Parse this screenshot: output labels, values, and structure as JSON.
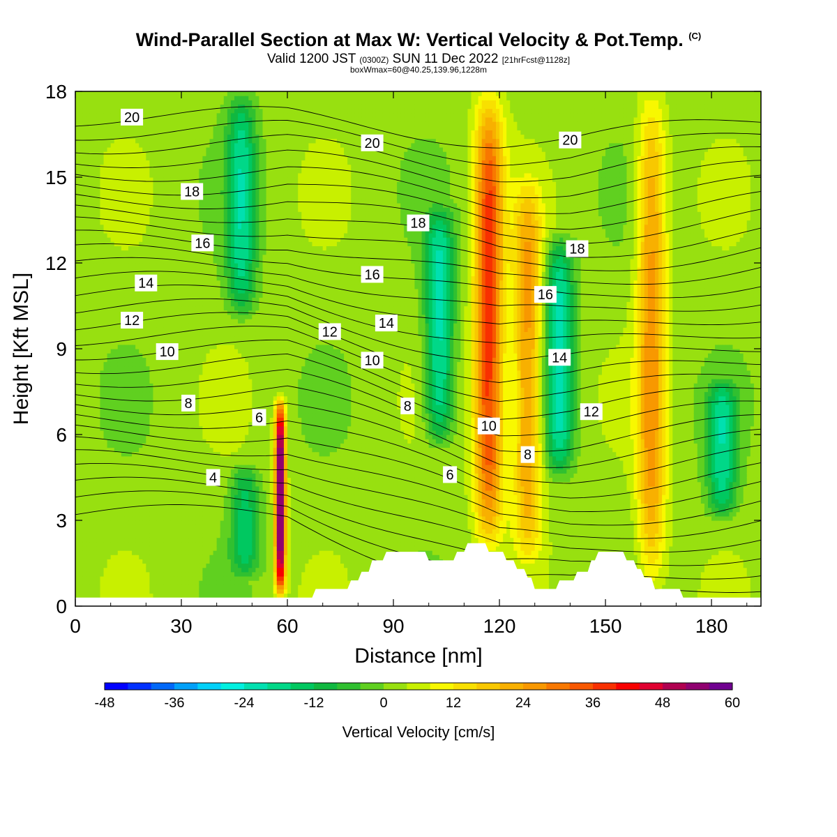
{
  "titles": {
    "main": "Wind-Parallel Section at Max W: Vertical Velocity & Pot.Temp.",
    "copyright": "(C)",
    "valid_a": "Valid 1200 JST",
    "valid_b": "(0300Z)",
    "valid_c": "SUN 11 Dec 2022",
    "valid_d": "[21hrFcst@1128z]",
    "box": "boxWmax=60@40.25,139.96,1228m"
  },
  "chart_data": {
    "type": "heatmap",
    "xlabel": "Distance [nm]",
    "ylabel": "Height [Kft MSL]",
    "xlim": [
      0,
      194
    ],
    "ylim": [
      0,
      18
    ],
    "xticks": [
      0,
      30,
      60,
      90,
      120,
      150,
      180
    ],
    "yticks": [
      0,
      3,
      6,
      9,
      12,
      15,
      18
    ],
    "colorbar": {
      "label": "Vertical Velocity [cm/s]",
      "ticks": [
        -48,
        -36,
        -24,
        -12,
        0,
        12,
        24,
        36,
        48,
        60
      ],
      "levels": [
        -48,
        -44,
        -40,
        -36,
        -32,
        -28,
        -24,
        -20,
        -16,
        -12,
        -8,
        -4,
        0,
        4,
        8,
        12,
        16,
        20,
        24,
        28,
        32,
        36,
        40,
        44,
        48,
        52,
        56,
        60
      ],
      "colors": [
        "#0000ff",
        "#0030ff",
        "#0068f8",
        "#00a0f8",
        "#00d0f8",
        "#00f0e0",
        "#00e0b0",
        "#00d888",
        "#00c860",
        "#10b840",
        "#30c030",
        "#60d020",
        "#98e010",
        "#c8f000",
        "#f8f800",
        "#f8e000",
        "#f8c800",
        "#f8b000",
        "#f89800",
        "#f87800",
        "#f85800",
        "#f83000",
        "#f80000",
        "#e00030",
        "#b00050",
        "#900070",
        "#700090"
      ]
    },
    "features": [
      {
        "kind": "updraft",
        "center_x": 58,
        "bottom": 0.3,
        "top": 7.3,
        "peak_w": 60
      },
      {
        "kind": "updraft",
        "center_x": 117,
        "bottom": 2.0,
        "top": 18,
        "peak_w": 36
      },
      {
        "kind": "updraft",
        "center_x": 128,
        "bottom": 1.5,
        "top": 15,
        "peak_w": 24
      },
      {
        "kind": "updraft",
        "center_x": 163,
        "bottom": 0.5,
        "top": 18,
        "peak_w": 24
      },
      {
        "kind": "downdraft",
        "center_x": 103,
        "bottom": 5.5,
        "top": 14,
        "peak_w": -24
      },
      {
        "kind": "downdraft",
        "center_x": 137,
        "bottom": 4.5,
        "top": 13,
        "peak_w": -24
      },
      {
        "kind": "downdraft",
        "center_x": 48,
        "bottom": 1.0,
        "top": 5.0,
        "peak_w": -16
      },
      {
        "kind": "downdraft",
        "center_x": 183,
        "bottom": 3.0,
        "top": 8.0,
        "peak_w": -20
      },
      {
        "kind": "downdraft",
        "center_x": 47,
        "bottom": 10,
        "top": 18,
        "peak_w": -20
      }
    ],
    "terrain": [
      {
        "x": 0,
        "h": 0.3
      },
      {
        "x": 67,
        "h": 0.3
      },
      {
        "x": 68,
        "h": 0.6
      },
      {
        "x": 77,
        "h": 0.6
      },
      {
        "x": 78,
        "h": 0.9
      },
      {
        "x": 80,
        "h": 0.9
      },
      {
        "x": 81,
        "h": 1.2
      },
      {
        "x": 83,
        "h": 1.2
      },
      {
        "x": 84,
        "h": 1.6
      },
      {
        "x": 87,
        "h": 1.6
      },
      {
        "x": 88,
        "h": 1.9
      },
      {
        "x": 99,
        "h": 1.9
      },
      {
        "x": 100,
        "h": 1.6
      },
      {
        "x": 107,
        "h": 1.6
      },
      {
        "x": 108,
        "h": 1.9
      },
      {
        "x": 110,
        "h": 1.9
      },
      {
        "x": 111,
        "h": 2.2
      },
      {
        "x": 116,
        "h": 2.2
      },
      {
        "x": 117,
        "h": 1.9
      },
      {
        "x": 121,
        "h": 1.9
      },
      {
        "x": 122,
        "h": 1.6
      },
      {
        "x": 124,
        "h": 1.6
      },
      {
        "x": 125,
        "h": 1.3
      },
      {
        "x": 127,
        "h": 1.3
      },
      {
        "x": 128,
        "h": 1.0
      },
      {
        "x": 129,
        "h": 1.0
      },
      {
        "x": 130,
        "h": 0.6
      },
      {
        "x": 136,
        "h": 0.6
      },
      {
        "x": 137,
        "h": 0.9
      },
      {
        "x": 141,
        "h": 0.9
      },
      {
        "x": 142,
        "h": 1.2
      },
      {
        "x": 145,
        "h": 1.2
      },
      {
        "x": 146,
        "h": 1.6
      },
      {
        "x": 147,
        "h": 1.6
      },
      {
        "x": 148,
        "h": 1.9
      },
      {
        "x": 155,
        "h": 1.9
      },
      {
        "x": 156,
        "h": 1.6
      },
      {
        "x": 158,
        "h": 1.6
      },
      {
        "x": 159,
        "h": 1.3
      },
      {
        "x": 160,
        "h": 1.3
      },
      {
        "x": 161,
        "h": 1.0
      },
      {
        "x": 163,
        "h": 1.0
      },
      {
        "x": 164,
        "h": 0.6
      },
      {
        "x": 171,
        "h": 0.6
      },
      {
        "x": 172,
        "h": 0.3
      },
      {
        "x": 194,
        "h": 0.3
      }
    ],
    "contour_labels": [
      {
        "text": "20",
        "x": 16,
        "y": 17.1
      },
      {
        "text": "20",
        "x": 84,
        "y": 16.2
      },
      {
        "text": "20",
        "x": 140,
        "y": 16.3
      },
      {
        "text": "18",
        "x": 33,
        "y": 14.5
      },
      {
        "text": "18",
        "x": 97,
        "y": 13.4
      },
      {
        "text": "18",
        "x": 142,
        "y": 12.5
      },
      {
        "text": "16",
        "x": 36,
        "y": 12.7
      },
      {
        "text": "16",
        "x": 84,
        "y": 11.6
      },
      {
        "text": "16",
        "x": 133,
        "y": 10.9
      },
      {
        "text": "14",
        "x": 20,
        "y": 11.3
      },
      {
        "text": "14",
        "x": 88,
        "y": 9.9
      },
      {
        "text": "14",
        "x": 137,
        "y": 8.7
      },
      {
        "text": "12",
        "x": 16,
        "y": 10.0
      },
      {
        "text": "12",
        "x": 72,
        "y": 9.6
      },
      {
        "text": "12",
        "x": 146,
        "y": 6.8
      },
      {
        "text": "10",
        "x": 26,
        "y": 8.9
      },
      {
        "text": "10",
        "x": 84,
        "y": 8.6
      },
      {
        "text": "10",
        "x": 117,
        "y": 6.3
      },
      {
        "text": "8",
        "x": 32,
        "y": 7.1
      },
      {
        "text": "8",
        "x": 94,
        "y": 7.0
      },
      {
        "text": "8",
        "x": 128,
        "y": 5.3
      },
      {
        "text": "6",
        "x": 52,
        "y": 6.6
      },
      {
        "text": "6",
        "x": 106,
        "y": 4.6
      },
      {
        "text": "4",
        "x": 39,
        "y": 4.5
      }
    ]
  }
}
